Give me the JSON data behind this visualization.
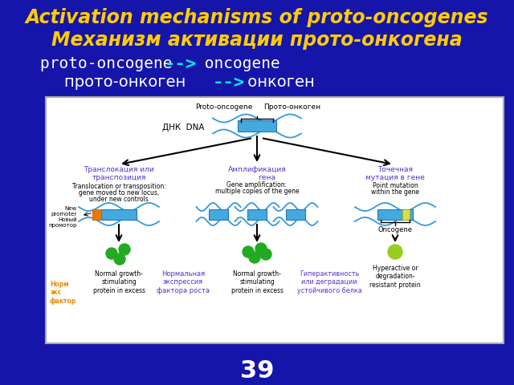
{
  "bg_color": "#1515aa",
  "title_line1": "Activation mechanisms of proto-oncogenes",
  "title_line2": "Механизм активации прото-онкогена",
  "title_color": "#ffcc00",
  "title_fontsize": 17,
  "sub1a": "proto-oncogene ",
  "sub1b": "-->",
  "sub1c": " oncogene",
  "sub2a": "прото-онкоген ",
  "sub2b": "-->",
  "sub2c": " онкоген",
  "subtitle_color": "#ffffff",
  "arrow_color": "#00eeff",
  "subtitle_fontsize": 14,
  "page_number": "39",
  "dna_blue": "#3399dd",
  "gene_blue": "#44aadd",
  "orange": "#ee7700",
  "green_dark": "#22aa22",
  "green_light": "#99cc22",
  "purple": "#5533cc",
  "black": "#000000",
  "orange_label": "#ee8800",
  "box_bg": "#ffffff",
  "box_border": "#dddddd"
}
